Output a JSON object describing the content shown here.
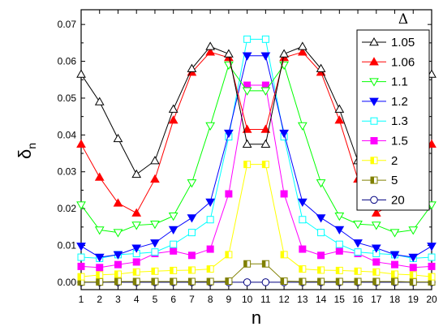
{
  "chart_data": {
    "type": "line",
    "title": "",
    "xlabel": "n",
    "ylabel": "δ",
    "ylabel_subscript": "n",
    "xlim": [
      1,
      20
    ],
    "ylim": [
      -0.002,
      0.074
    ],
    "x": [
      1,
      2,
      3,
      4,
      5,
      6,
      7,
      8,
      9,
      10,
      11,
      12,
      13,
      14,
      15,
      16,
      17,
      18,
      19,
      20
    ],
    "x_ticks": [
      "1",
      "2",
      "3",
      "4",
      "5",
      "6",
      "7",
      "8",
      "9",
      "10",
      "11",
      "12",
      "13",
      "14",
      "15",
      "16",
      "17",
      "18",
      "19",
      "20"
    ],
    "y_ticks": [
      0.0,
      0.01,
      0.02,
      0.03,
      0.04,
      0.05,
      0.06,
      0.07
    ],
    "y_tick_labels": [
      "0.00",
      "0.01",
      "0.02",
      "0.03",
      "0.04",
      "0.05",
      "0.06",
      "0.07"
    ],
    "grid": false,
    "legend": {
      "title": "Δ",
      "position": "top-right"
    },
    "series": [
      {
        "name": "1.05",
        "color": "#000000",
        "marker": "triangle-up-open",
        "values": [
          0.0565,
          0.049,
          0.039,
          0.0293,
          0.033,
          0.047,
          0.058,
          0.064,
          0.062,
          0.0375,
          0.0375,
          0.062,
          0.064,
          0.058,
          0.047,
          0.033,
          0.0293,
          0.039,
          0.049,
          0.0565
        ]
      },
      {
        "name": "1.06",
        "color": "#ff0000",
        "marker": "triangle-up-filled",
        "values": [
          0.0375,
          0.0285,
          0.0215,
          0.0188,
          0.028,
          0.044,
          0.057,
          0.0625,
          0.061,
          0.0415,
          0.0415,
          0.061,
          0.0625,
          0.057,
          0.044,
          0.028,
          0.0188,
          0.0215,
          0.0285,
          0.0375
        ]
      },
      {
        "name": "1.1",
        "color": "#00ff00",
        "marker": "triangle-down-open",
        "values": [
          0.021,
          0.0142,
          0.0135,
          0.0155,
          0.0158,
          0.018,
          0.027,
          0.0425,
          0.059,
          0.052,
          0.052,
          0.059,
          0.0425,
          0.027,
          0.018,
          0.0158,
          0.0155,
          0.0135,
          0.0142,
          0.021
        ]
      },
      {
        "name": "1.2",
        "color": "#0000ff",
        "marker": "triangle-down-filled",
        "values": [
          0.0098,
          0.0068,
          0.0075,
          0.0093,
          0.0107,
          0.0143,
          0.0175,
          0.0218,
          0.0405,
          0.0615,
          0.0615,
          0.0405,
          0.0218,
          0.0175,
          0.0143,
          0.0107,
          0.0093,
          0.0075,
          0.0068,
          0.0098
        ]
      },
      {
        "name": "1.3",
        "color": "#00ffff",
        "marker": "square-open",
        "values": [
          0.0068,
          0.0065,
          0.0075,
          0.0078,
          0.0082,
          0.0103,
          0.0135,
          0.017,
          0.0395,
          0.066,
          0.066,
          0.0395,
          0.017,
          0.0135,
          0.0103,
          0.0082,
          0.0078,
          0.0075,
          0.0065,
          0.0068
        ]
      },
      {
        "name": "1.5",
        "color": "#ff00ff",
        "marker": "square-filled",
        "values": [
          0.0043,
          0.004,
          0.0048,
          0.0055,
          0.0078,
          0.0085,
          0.0073,
          0.009,
          0.024,
          0.0535,
          0.0535,
          0.024,
          0.009,
          0.0073,
          0.0085,
          0.0078,
          0.0055,
          0.0048,
          0.004,
          0.0043
        ]
      },
      {
        "name": "2",
        "color": "#ffff00",
        "marker": "square-half",
        "values": [
          0.0015,
          0.002,
          0.0022,
          0.0028,
          0.003,
          0.0032,
          0.0033,
          0.0036,
          0.0075,
          0.032,
          0.032,
          0.0075,
          0.0036,
          0.0033,
          0.0032,
          0.003,
          0.0028,
          0.0022,
          0.002,
          0.0015
        ]
      },
      {
        "name": "5",
        "color": "#808000",
        "marker": "square-half",
        "values": [
          0.0001,
          0.0001,
          0.0002,
          0.0002,
          0.0002,
          0.0002,
          0.0002,
          0.0002,
          0.0003,
          0.005,
          0.005,
          0.0003,
          0.0002,
          0.0002,
          0.0002,
          0.0002,
          0.0002,
          0.0002,
          0.0001,
          0.0001
        ]
      },
      {
        "name": "20",
        "color": "#000080",
        "marker": "circle-open",
        "values": [
          0,
          0,
          0,
          0,
          0,
          0,
          0,
          0,
          0,
          0,
          0,
          0,
          0,
          0,
          0,
          0,
          0,
          0,
          0,
          0
        ]
      }
    ]
  }
}
